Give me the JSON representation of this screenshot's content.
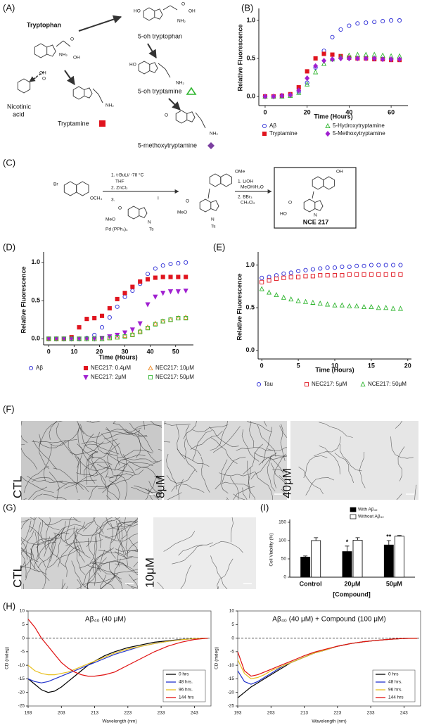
{
  "panel_labels": [
    "(A)",
    "(B)",
    "(C)",
    "(D)",
    "(E)",
    "(F)",
    "(G)",
    "(I)",
    "(H)"
  ],
  "pathway": {
    "tryptophan": "Tryptophan",
    "hydroxytryptophan": "5-oh tryptophan",
    "hydroxytryptamine": "5-oh tryptamine",
    "tryptamine": "Tryptamine",
    "nicotinic": [
      "Nicotinic",
      "acid"
    ],
    "methoxytryptamine": "5-methoxytryptamine",
    "atoms": [
      "NH₂",
      "OH",
      "O",
      "HO",
      "NH₂",
      "O",
      "OH",
      "HO",
      "NH₂",
      "NH₂",
      "OH",
      "O",
      "O",
      "NH₂"
    ]
  },
  "scheme": {
    "reagents_1": [
      "1. t-BuLi/ -78 °C",
      "THF",
      "2. ZnCl₂",
      "3.",
      "Pd (PPh₃)₄"
    ],
    "reagents_2": [
      "1. LiOH",
      "MeOH/H₂O",
      "2. BBr₃",
      "CH₂Cl₂"
    ],
    "product": "NCE 217",
    "atoms": [
      "Br",
      "OCH₃",
      "MeO",
      "O",
      "I",
      "N",
      "Ts",
      "OMe",
      "MeO",
      "O",
      "N",
      "Ts",
      "OH",
      "HO",
      "O",
      "N"
    ]
  },
  "micrographs": {
    "F": [
      "CTL",
      "8μM",
      "40μM"
    ],
    "G": [
      "CTL",
      "10μM"
    ]
  },
  "chart_data": [
    {
      "type": "scatter",
      "xlabel": "Time (Hours)",
      "ylabel": "Relative Fluorescence",
      "legend": "bottom",
      "x": [
        0,
        4,
        8,
        12,
        16,
        20,
        24,
        28,
        32,
        36,
        40,
        44,
        48,
        52,
        56,
        60,
        64
      ],
      "xlim": [
        -3,
        68
      ],
      "ylim": [
        -0.12,
        1.12
      ],
      "xticks": [
        0,
        20,
        40,
        60
      ],
      "yticks": [
        {
          "value": 0,
          "label": "0.0"
        },
        0.5,
        {
          "value": 1,
          "label": "1.0"
        }
      ],
      "series": [
        {
          "name": "Aβ",
          "color": "#2b2bd6",
          "marker": "circle",
          "filled": false,
          "values": [
            0,
            0,
            0.01,
            0.02,
            0.06,
            0.18,
            0.38,
            0.6,
            0.78,
            0.88,
            0.93,
            0.96,
            0.97,
            0.98,
            0.99,
            1.0,
            1.0
          ]
        },
        {
          "name": "Tryptamine",
          "color": "#e0141e",
          "marker": "square",
          "filled": true,
          "values": [
            0,
            0,
            0.01,
            0.03,
            0.12,
            0.33,
            0.5,
            0.56,
            0.55,
            0.53,
            0.51,
            0.5,
            0.5,
            0.49,
            0.49,
            0.48,
            0.48
          ]
        },
        {
          "name": "5-Hydroxytryptamine",
          "color": "#2fb52f",
          "marker": "triangle",
          "filled": false,
          "values": [
            0,
            0,
            0,
            0.01,
            0.05,
            0.16,
            0.32,
            0.43,
            0.49,
            0.52,
            0.54,
            0.55,
            0.55,
            0.55,
            0.54,
            0.53,
            0.53
          ]
        },
        {
          "name": "5-Methoxytryptamine",
          "color": "#a020d0",
          "marker": "diamond",
          "filled": true,
          "values": [
            0,
            0,
            0.01,
            0.02,
            0.08,
            0.24,
            0.4,
            0.47,
            0.49,
            0.5,
            0.5,
            0.5,
            0.5,
            0.5,
            0.49,
            0.49,
            0.49
          ]
        }
      ]
    },
    {
      "type": "scatter",
      "xlabel": "Time (Hours)",
      "ylabel": "Relative Fluorescence",
      "legend": "bottom",
      "x": [
        0,
        3,
        6,
        9,
        12,
        15,
        18,
        21,
        24,
        27,
        30,
        33,
        36,
        39,
        42,
        45,
        48,
        51,
        54
      ],
      "xlim": [
        -2,
        57
      ],
      "ylim": [
        -0.08,
        1.1
      ],
      "xticks": [
        0,
        10,
        20,
        30,
        40,
        50
      ],
      "yticks": [
        {
          "value": 0,
          "label": "0.0"
        },
        0.5,
        {
          "value": 1,
          "label": "1.0"
        }
      ],
      "series": [
        {
          "name": "Aβ",
          "color": "#2b2bd6",
          "marker": "circle",
          "filled": false,
          "values": [
            0,
            0,
            0,
            0,
            0,
            0.01,
            0.05,
            0.15,
            0.28,
            0.42,
            0.55,
            0.63,
            0.72,
            0.85,
            0.92,
            0.96,
            0.98,
            0.99,
            1.0
          ]
        },
        {
          "name": "NEC217: 0.4μM",
          "color": "#e0141e",
          "marker": "square",
          "filled": true,
          "values": [
            0,
            0,
            0,
            0.02,
            0.15,
            0.26,
            0.27,
            0.3,
            0.4,
            0.52,
            0.6,
            0.68,
            0.75,
            0.78,
            0.8,
            0.81,
            0.81,
            0.81,
            0.81
          ]
        },
        {
          "name": "NEC217: 10μM",
          "color": "#f08a24",
          "marker": "triangle",
          "filled": false,
          "values": [
            0,
            0,
            0,
            0,
            0,
            0,
            0,
            0,
            0.01,
            0.02,
            0.04,
            0.06,
            0.1,
            0.15,
            0.2,
            0.23,
            0.25,
            0.27,
            0.28
          ]
        },
        {
          "name": "NEC217: 2μM",
          "color": "#a020d0",
          "marker": "inv-triangle",
          "filled": true,
          "values": [
            0,
            0,
            0,
            0,
            0,
            0,
            0,
            0.01,
            0.03,
            0.05,
            0.08,
            0.12,
            0.2,
            0.45,
            0.55,
            0.6,
            0.62,
            0.62,
            0.63
          ]
        },
        {
          "name": "NEC217: 50μM",
          "color": "#2fb52f",
          "marker": "square",
          "filled": false,
          "values": [
            0,
            0,
            0,
            0,
            0,
            0,
            0,
            0,
            0.01,
            0.02,
            0.03,
            0.05,
            0.09,
            0.14,
            0.19,
            0.23,
            0.25,
            0.27,
            0.27
          ]
        }
      ]
    },
    {
      "type": "scatter",
      "xlabel": "Time (Hours)",
      "ylabel": "Relative Fluorescence",
      "legend": "bottom",
      "x": [
        0,
        1,
        2,
        3,
        4,
        5,
        6,
        7,
        8,
        9,
        10,
        11,
        12,
        13,
        14,
        15,
        16,
        17,
        18,
        19
      ],
      "xlim": [
        -0.5,
        20.5
      ],
      "ylim": [
        -0.1,
        1.12
      ],
      "xticks": [
        0,
        5,
        10,
        15,
        20
      ],
      "yticks": [
        {
          "value": 0,
          "label": "0.0"
        },
        0.5,
        {
          "value": 1,
          "label": "1.0"
        }
      ],
      "series": [
        {
          "name": "Tau",
          "color": "#2b2bd6",
          "marker": "circle",
          "filled": false,
          "values": [
            0.85,
            0.86,
            0.88,
            0.9,
            0.91,
            0.93,
            0.94,
            0.95,
            0.96,
            0.97,
            0.97,
            0.98,
            0.98,
            0.99,
            0.99,
            1.0,
            1.0,
            1.0,
            1.0,
            1.0
          ]
        },
        {
          "name": "NEC217: 5μM",
          "color": "#e0141e",
          "marker": "square",
          "filled": false,
          "values": [
            0.8,
            0.82,
            0.84,
            0.85,
            0.86,
            0.86,
            0.87,
            0.87,
            0.88,
            0.88,
            0.88,
            0.88,
            0.89,
            0.89,
            0.89,
            0.89,
            0.89,
            0.89,
            0.89,
            0.89
          ]
        },
        {
          "name": "NCE217: 50μM",
          "color": "#2fb52f",
          "marker": "triangle",
          "filled": false,
          "values": [
            0.72,
            0.68,
            0.65,
            0.62,
            0.6,
            0.58,
            0.57,
            0.56,
            0.55,
            0.54,
            0.53,
            0.53,
            0.52,
            0.52,
            0.51,
            0.51,
            0.5,
            0.5,
            0.49,
            0.49
          ]
        }
      ]
    },
    {
      "type": "bar",
      "xlabel": "[Compound]",
      "ylabel": "Cell Viability (%)",
      "legend": "top",
      "categories": [
        "Control",
        "20μM",
        "50μM"
      ],
      "ylim": [
        0,
        150
      ],
      "yticks": [
        0,
        50,
        100,
        150
      ],
      "significance": [
        null,
        "*",
        "**"
      ],
      "series": [
        {
          "name": "With Aβ₄₂",
          "color": "#000000",
          "values": [
            55,
            70,
            88
          ],
          "errors": [
            3,
            15,
            12
          ]
        },
        {
          "name": "Without Aβ₄₂",
          "color": "#ffffff",
          "values": [
            100,
            101,
            112
          ],
          "errors": [
            8,
            7,
            2
          ]
        }
      ]
    },
    {
      "type": "line",
      "title": "Aβ₄₀ (40 μM)",
      "xlabel": "Wavelength (nm)",
      "ylabel": "CD (mdeg)",
      "legend": "lower right",
      "frame": true,
      "zero_line": true,
      "x": [
        193,
        195,
        197,
        199,
        201,
        203,
        205,
        207,
        209,
        211,
        213,
        216,
        219,
        223,
        227,
        231,
        235,
        239,
        243,
        247
      ],
      "xlim": [
        193,
        248
      ],
      "ylim": [
        -25,
        10
      ],
      "xticks": [
        193,
        203,
        213,
        223,
        233,
        243
      ],
      "yticks": [
        10,
        5,
        0,
        -5,
        -10,
        -15,
        -20,
        -25
      ],
      "series": [
        {
          "name": "0 hrs",
          "color": "#000000",
          "values": [
            -15,
            -17,
            -19,
            -20,
            -19.5,
            -18,
            -16,
            -14,
            -12,
            -10,
            -8.5,
            -6.5,
            -5,
            -3.5,
            -2.5,
            -1.5,
            -1,
            -0.5,
            -0.2,
            0
          ]
        },
        {
          "name": "48 hrs.",
          "color": "#2233cc",
          "values": [
            -15,
            -16,
            -16.5,
            -16,
            -15,
            -14,
            -13,
            -12,
            -11,
            -10,
            -9,
            -7.5,
            -6,
            -4.5,
            -3,
            -2,
            -1.2,
            -0.6,
            -0.2,
            0
          ]
        },
        {
          "name": "96 hrs.",
          "color": "#e8c020",
          "values": [
            -10,
            -12,
            -13,
            -13.5,
            -13.5,
            -13,
            -12.5,
            -11.5,
            -10.5,
            -9.5,
            -8.5,
            -7,
            -5.5,
            -4,
            -3,
            -2,
            -1.2,
            -0.6,
            -0.2,
            0
          ]
        },
        {
          "name": "144 hrs",
          "color": "#e01010",
          "values": [
            7,
            4,
            0,
            -3,
            -6,
            -9,
            -11,
            -12.5,
            -13.5,
            -14,
            -14,
            -13.5,
            -12.5,
            -10,
            -7.5,
            -5,
            -3,
            -1.5,
            -0.5,
            0
          ]
        }
      ]
    },
    {
      "type": "line",
      "title": "Aβ₄₀ (40 μM) + Compound (100 μM)",
      "xlabel": "Wavelength (nm)",
      "ylabel": "CD (mdeg)",
      "legend": "lower right",
      "frame": true,
      "zero_line": true,
      "x": [
        193,
        195,
        197,
        199,
        201,
        203,
        205,
        207,
        209,
        211,
        213,
        216,
        219,
        223,
        227,
        231,
        235,
        239,
        243,
        247
      ],
      "xlim": [
        193,
        248
      ],
      "ylim": [
        -25,
        10
      ],
      "xticks": [
        193,
        203,
        213,
        223,
        233,
        243
      ],
      "yticks": [
        10,
        5,
        0,
        -5,
        -10,
        -15,
        -20,
        -25
      ],
      "series": [
        {
          "name": "0 hrs",
          "color": "#000000",
          "values": [
            -22,
            -20,
            -18,
            -16.5,
            -15,
            -13.5,
            -12,
            -10.5,
            -9,
            -8,
            -7,
            -5.5,
            -4.5,
            -3,
            -2,
            -1.3,
            -0.8,
            -0.4,
            -0.1,
            0
          ]
        },
        {
          "name": "48 hrs.",
          "color": "#2233cc",
          "values": [
            -12,
            -16,
            -17,
            -16,
            -14.5,
            -13,
            -11.5,
            -10,
            -9,
            -8,
            -7,
            -5.5,
            -4.5,
            -3,
            -2,
            -1.3,
            -0.8,
            -0.4,
            -0.1,
            0
          ]
        },
        {
          "name": "96 hrs.",
          "color": "#e8c020",
          "values": [
            -8,
            -13,
            -15,
            -14.5,
            -13.5,
            -12,
            -11,
            -10,
            -9,
            -8,
            -7,
            -5.5,
            -4.5,
            -3,
            -2,
            -1.3,
            -0.8,
            -0.4,
            -0.1,
            0
          ]
        },
        {
          "name": "144 hrs",
          "color": "#e01010",
          "values": [
            -5,
            -12,
            -14,
            -13.5,
            -12.5,
            -11.5,
            -10.5,
            -9.5,
            -8.5,
            -7.5,
            -6.5,
            -5.2,
            -4.2,
            -3,
            -2,
            -1.3,
            -0.8,
            -0.4,
            -0.1,
            0
          ]
        }
      ]
    }
  ]
}
